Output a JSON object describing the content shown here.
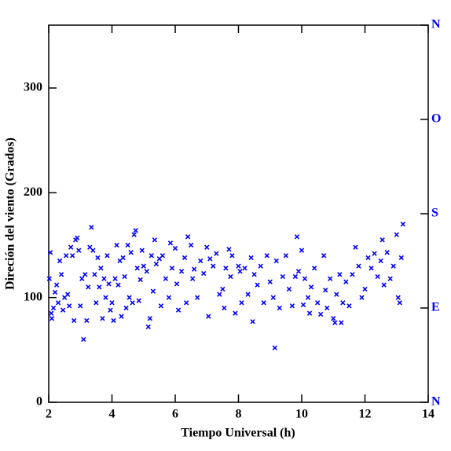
{
  "chart_data": {
    "type": "scatter",
    "x_label": "Tiempo Universal (h)",
    "y_label": "Direción del viento (Grados)",
    "xlim": [
      2,
      14
    ],
    "xticks": [
      2,
      4,
      6,
      8,
      10,
      12,
      14
    ],
    "ylim": [
      0,
      360
    ],
    "yticks": [
      0,
      100,
      200,
      300
    ],
    "y2lim": [
      0,
      360
    ],
    "y2ticks": [
      {
        "value": 0,
        "label": "N"
      },
      {
        "value": 90,
        "label": "E"
      },
      {
        "value": 180,
        "label": "S"
      },
      {
        "value": 270,
        "label": "O"
      },
      {
        "value": 360,
        "label": "N"
      }
    ],
    "y2_color": "#0000ff",
    "series": [
      {
        "color": "#0000ff",
        "x": [
          2.02,
          2.05,
          2.08,
          2.1,
          2.15,
          2.2,
          2.25,
          2.3,
          2.35,
          2.4,
          2.45,
          2.5,
          2.55,
          2.6,
          2.65,
          2.7,
          2.75,
          2.8,
          2.85,
          2.9,
          2.95,
          3.0,
          3.05,
          3.1,
          3.15,
          3.2,
          3.25,
          3.3,
          3.35,
          3.4,
          3.45,
          3.5,
          3.55,
          3.6,
          3.65,
          3.7,
          3.75,
          3.8,
          3.85,
          3.9,
          3.95,
          4.0,
          4.05,
          4.1,
          4.15,
          4.2,
          4.25,
          4.3,
          4.35,
          4.4,
          4.45,
          4.5,
          4.55,
          4.6,
          4.65,
          4.7,
          4.75,
          4.8,
          4.85,
          4.9,
          4.95,
          5.0,
          5.1,
          5.15,
          5.2,
          5.25,
          5.3,
          5.35,
          5.4,
          5.5,
          5.55,
          5.6,
          5.7,
          5.8,
          5.85,
          5.9,
          6.0,
          6.05,
          6.1,
          6.2,
          6.3,
          6.35,
          6.4,
          6.5,
          6.55,
          6.6,
          6.7,
          6.8,
          6.9,
          7.0,
          7.05,
          7.1,
          7.2,
          7.3,
          7.4,
          7.5,
          7.55,
          7.6,
          7.7,
          7.75,
          7.8,
          7.9,
          8.0,
          8.05,
          8.1,
          8.2,
          8.3,
          8.4,
          8.45,
          8.5,
          8.6,
          8.7,
          8.8,
          8.9,
          9.0,
          9.1,
          9.15,
          9.2,
          9.3,
          9.4,
          9.5,
          9.6,
          9.7,
          9.8,
          9.85,
          9.9,
          10.0,
          10.05,
          10.1,
          10.2,
          10.25,
          10.3,
          10.4,
          10.5,
          10.6,
          10.7,
          10.75,
          10.8,
          10.9,
          11.0,
          11.05,
          11.1,
          11.2,
          11.25,
          11.3,
          11.4,
          11.5,
          11.6,
          11.7,
          11.8,
          11.9,
          12.0,
          12.1,
          12.2,
          12.3,
          12.4,
          12.5,
          12.55,
          12.6,
          12.7,
          12.8,
          12.9,
          13.0,
          13.05,
          13.1,
          13.15,
          13.2
        ],
        "values": [
          118,
          143,
          85,
          80,
          90,
          105,
          112,
          95,
          135,
          122,
          88,
          100,
          140,
          103,
          92,
          148,
          140,
          78,
          155,
          157,
          145,
          92,
          118,
          60,
          122,
          78,
          110,
          148,
          167,
          145,
          122,
          95,
          138,
          110,
          128,
          80,
          118,
          100,
          140,
          113,
          88,
          95,
          78,
          118,
          150,
          112,
          135,
          82,
          138,
          120,
          90,
          150,
          100,
          143,
          95,
          160,
          164,
          128,
          97,
          117,
          145,
          130,
          125,
          72,
          80,
          140,
          106,
          155,
          132,
          137,
          92,
          140,
          118,
          100,
          152,
          128,
          147,
          113,
          88,
          125,
          138,
          95,
          158,
          150,
          118,
          127,
          100,
          135,
          123,
          148,
          82,
          137,
          130,
          142,
          103,
          108,
          90,
          128,
          146,
          120,
          140,
          85,
          130,
          125,
          95,
          128,
          103,
          138,
          77,
          122,
          112,
          130,
          95,
          140,
          115,
          100,
          52,
          135,
          90,
          120,
          140,
          108,
          92,
          120,
          158,
          125,
          145,
          93,
          118,
          100,
          85,
          110,
          128,
          95,
          84,
          140,
          107,
          90,
          118,
          80,
          76,
          103,
          122,
          76,
          95,
          115,
          92,
          122,
          148,
          130,
          100,
          108,
          138,
          128,
          142,
          120,
          135,
          155,
          112,
          143,
          118,
          130,
          160,
          100,
          95,
          138,
          170
        ]
      }
    ]
  }
}
